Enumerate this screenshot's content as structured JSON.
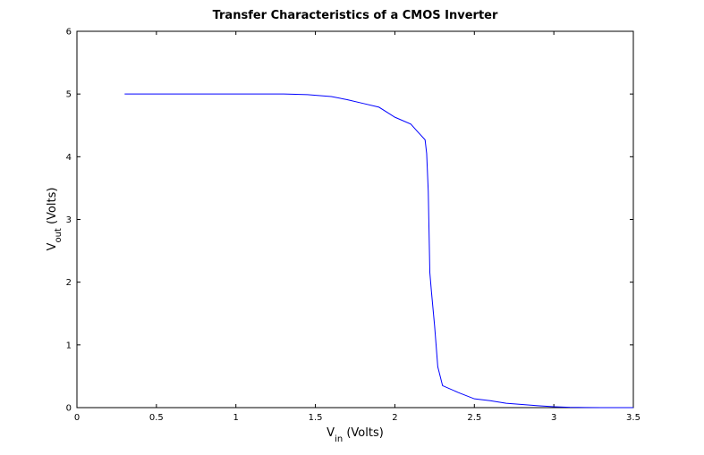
{
  "chart_data": {
    "type": "line",
    "title": "Transfer Characteristics of a CMOS Inverter",
    "xlabel": {
      "main": "V",
      "sub": "in",
      "rest": " (Volts)"
    },
    "ylabel": {
      "main": "V",
      "sub": "out",
      "rest": " (Volts)"
    },
    "xlim": [
      0,
      3.5
    ],
    "ylim": [
      0,
      6
    ],
    "xticks": [
      0,
      0.5,
      1,
      1.5,
      2,
      2.5,
      3,
      3.5
    ],
    "xtick_labels": [
      "0",
      "0.5",
      "1",
      "1.5",
      "2",
      "2.5",
      "3",
      "3.5"
    ],
    "yticks": [
      0,
      1,
      2,
      3,
      4,
      5,
      6
    ],
    "ytick_labels": [
      "0",
      "1",
      "2",
      "3",
      "4",
      "5",
      "6"
    ],
    "grid": false,
    "series": [
      {
        "color": "#0000ff",
        "x": [
          0.3,
          0.5,
          1.0,
          1.3,
          1.45,
          1.6,
          1.7,
          1.8,
          1.9,
          2.0,
          2.1,
          2.15,
          2.19,
          2.2,
          2.21,
          2.22,
          2.23,
          2.25,
          2.27,
          2.28,
          2.3,
          2.4,
          2.5,
          2.6,
          2.7,
          2.8,
          2.9,
          3.0,
          3.1,
          3.2,
          3.3,
          3.5
        ],
        "y": [
          5.0,
          5.0,
          5.0,
          5.0,
          4.99,
          4.96,
          4.91,
          4.85,
          4.79,
          4.63,
          4.52,
          4.38,
          4.27,
          4.05,
          3.45,
          2.15,
          1.85,
          1.3,
          0.65,
          0.55,
          0.35,
          0.24,
          0.14,
          0.11,
          0.07,
          0.05,
          0.03,
          0.015,
          0.005,
          0.002,
          0.0,
          0.0
        ]
      }
    ]
  }
}
